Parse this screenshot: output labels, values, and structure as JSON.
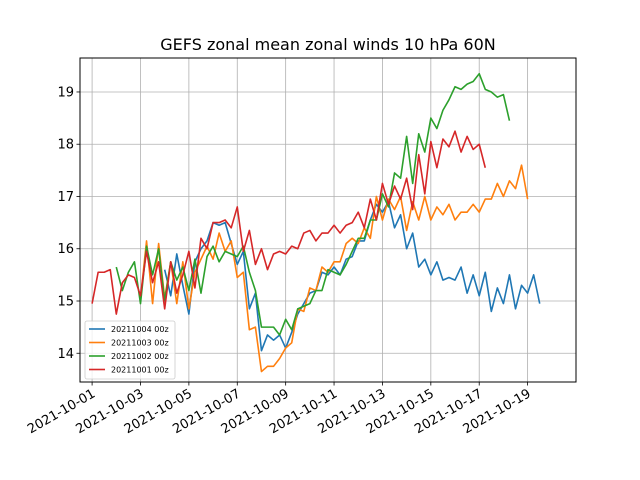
{
  "chart_data": {
    "type": "line",
    "title": "GEFS zonal mean zonal winds 10 hPa 60N",
    "xlabel": "",
    "ylabel": "",
    "x_axis_type": "date",
    "xlim": [
      "2021-09-30T12:00",
      "2021-10-21T00:00"
    ],
    "ylim": [
      13.45,
      19.65
    ],
    "x_ticks": [
      "2021-10-01",
      "2021-10-03",
      "2021-10-05",
      "2021-10-07",
      "2021-10-09",
      "2021-10-11",
      "2021-10-13",
      "2021-10-15",
      "2021-10-17",
      "2021-10-19"
    ],
    "x_tick_labels": [
      "2021-10-01",
      "2021-10-03",
      "2021-10-05",
      "2021-10-07",
      "2021-10-09",
      "2021-10-11",
      "2021-10-13",
      "2021-10-15",
      "2021-10-17",
      "2021-10-19"
    ],
    "y_ticks": [
      14,
      15,
      16,
      17,
      18,
      19
    ],
    "y_tick_labels": [
      "14",
      "15",
      "16",
      "17",
      "18",
      "19"
    ],
    "grid": true,
    "legend_position": "lower-left",
    "series": [
      {
        "name": "20211004 00z",
        "color": "#1f77b4",
        "start": "2021-10-04T00:00",
        "step_hours": 6,
        "values": [
          15.6,
          15.1,
          15.9,
          15.3,
          14.75,
          15.75,
          16.0,
          16.15,
          16.5,
          16.45,
          16.5,
          16.1,
          15.7,
          15.95,
          14.85,
          15.15,
          14.05,
          14.35,
          14.25,
          14.35,
          14.1,
          14.4,
          14.75,
          14.95,
          15.15,
          15.2,
          15.55,
          15.5,
          15.65,
          15.5,
          15.8,
          15.85,
          16.15,
          16.15,
          16.55,
          16.85,
          16.7,
          16.9,
          16.4,
          16.65,
          16.0,
          16.3,
          15.65,
          15.8,
          15.5,
          15.75,
          15.4,
          15.45,
          15.4,
          15.65,
          15.15,
          15.5,
          15.1,
          15.55,
          14.8,
          15.25,
          14.95,
          15.5,
          14.85,
          15.3,
          15.15,
          15.5,
          14.95
        ]
      },
      {
        "name": "20211003 00z",
        "color": "#ff7f0e",
        "start": "2021-10-03T00:00",
        "step_hours": 6,
        "values": [
          15.05,
          16.15,
          14.95,
          16.1,
          15.05,
          15.75,
          14.95,
          15.75,
          14.85,
          15.55,
          15.8,
          16.05,
          15.8,
          16.3,
          15.95,
          16.15,
          15.45,
          15.55,
          14.45,
          14.5,
          13.65,
          13.75,
          13.75,
          13.9,
          14.1,
          14.2,
          14.85,
          14.8,
          15.25,
          15.2,
          15.65,
          15.55,
          15.75,
          15.75,
          16.1,
          16.2,
          16.1,
          16.4,
          16.2,
          17.0,
          16.55,
          16.95,
          16.75,
          17.0,
          16.35,
          16.9,
          16.55,
          17.0,
          16.55,
          16.8,
          16.65,
          16.85,
          16.55,
          16.7,
          16.7,
          16.85,
          16.7,
          16.95,
          16.95,
          17.25,
          17.0,
          17.3,
          17.15,
          17.6,
          16.95
        ]
      },
      {
        "name": "20211002 00z",
        "color": "#2ca02c",
        "start": "2021-10-02T00:00",
        "step_hours": 6,
        "values": [
          15.65,
          15.2,
          15.55,
          15.75,
          14.95,
          16.05,
          15.5,
          16.0,
          15.0,
          15.75,
          15.4,
          15.65,
          15.2,
          15.8,
          15.15,
          15.85,
          16.05,
          15.75,
          15.95,
          15.9,
          15.85,
          16.05,
          15.55,
          15.2,
          14.5,
          14.5,
          14.5,
          14.35,
          14.65,
          14.45,
          14.85,
          14.9,
          14.95,
          15.2,
          15.2,
          15.6,
          15.55,
          15.5,
          15.7,
          15.95,
          16.2,
          16.2,
          16.55,
          16.55,
          17.05,
          16.8,
          17.45,
          17.35,
          18.15,
          17.25,
          18.2,
          17.85,
          18.5,
          18.3,
          18.65,
          18.85,
          19.1,
          19.05,
          19.15,
          19.2,
          19.35,
          19.05,
          19.0,
          18.9,
          18.95,
          18.45
        ]
      },
      {
        "name": "20211001 00z",
        "color": "#d62728",
        "start": "2021-10-01T00:00",
        "step_hours": 6,
        "values": [
          14.95,
          15.55,
          15.55,
          15.6,
          14.75,
          15.35,
          15.5,
          15.45,
          15.1,
          15.95,
          15.35,
          15.75,
          14.85,
          15.75,
          15.15,
          15.5,
          15.95,
          15.25,
          16.2,
          16.0,
          16.5,
          16.5,
          16.55,
          16.4,
          16.8,
          15.95,
          16.35,
          15.7,
          16.0,
          15.6,
          15.9,
          15.95,
          15.9,
          16.05,
          16.0,
          16.3,
          16.35,
          16.15,
          16.3,
          16.3,
          16.45,
          16.3,
          16.45,
          16.5,
          16.7,
          16.4,
          16.95,
          16.55,
          17.25,
          16.85,
          17.2,
          16.95,
          17.35,
          16.75,
          17.8,
          17.05,
          18.05,
          17.55,
          18.1,
          17.95,
          18.25,
          17.85,
          18.15,
          17.9,
          18.0,
          17.55
        ]
      }
    ]
  }
}
